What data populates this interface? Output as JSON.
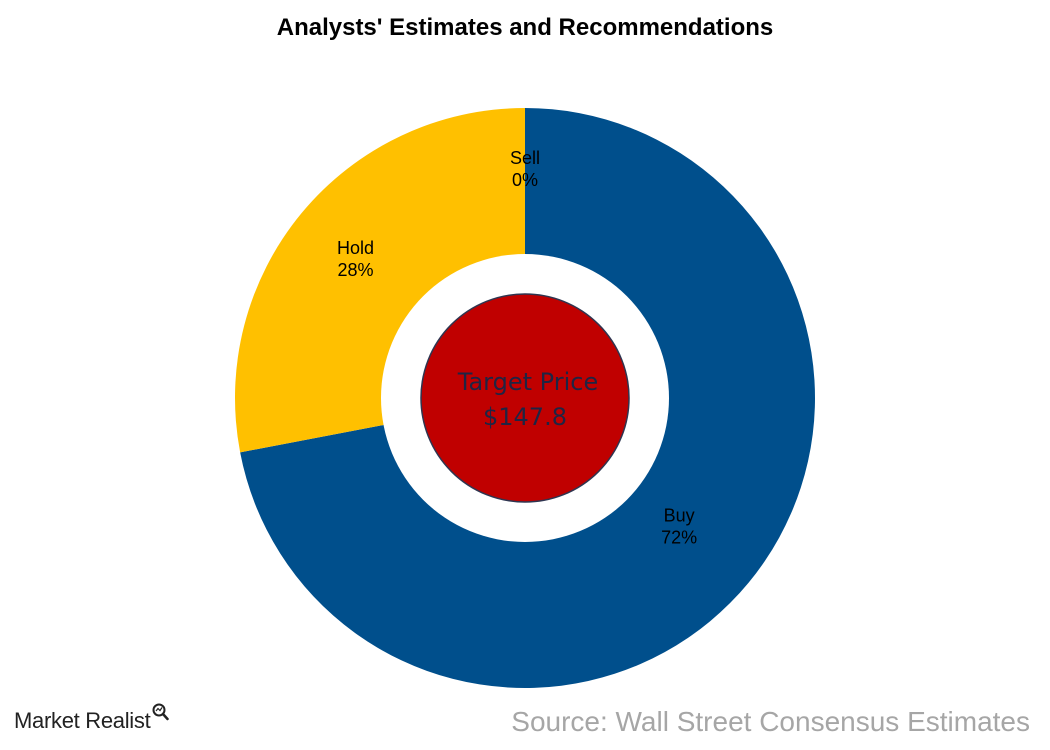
{
  "chart_data": {
    "type": "pie",
    "title": "Analysts' Estimates and Recommendations",
    "slices": [
      {
        "name": "Sell",
        "value": 0,
        "label": "0%",
        "color": "#c00000"
      },
      {
        "name": "Buy",
        "value": 72,
        "label": "72%",
        "color": "#004f8c"
      },
      {
        "name": "Hold",
        "value": 28,
        "label": "28%",
        "color": "#ffc000"
      }
    ],
    "center": {
      "label": "Target Price",
      "value": "$147.8",
      "color": "#c00000"
    }
  },
  "footer": {
    "brand": "Market Realist",
    "brand_icon": "magnifier-icon",
    "source": "Source: Wall Street Consensus Estimates"
  }
}
